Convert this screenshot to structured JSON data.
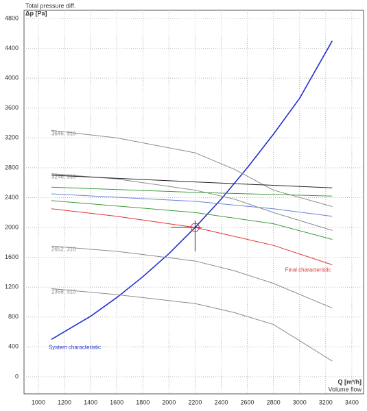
{
  "chart_data": {
    "type": "line",
    "title": "Total pressure diff.",
    "y_label": "Δp [Pa]",
    "x_label": "Q [m³/h]",
    "x_label_2": "Volume flow",
    "xlim": [
      890,
      3490
    ],
    "ylim": [
      -230,
      4910
    ],
    "xticks": [
      1000,
      1200,
      1400,
      1600,
      1800,
      2000,
      2200,
      2400,
      2600,
      2800,
      3000,
      3200,
      3400
    ],
    "yticks": [
      0,
      400,
      800,
      1200,
      1600,
      2000,
      2400,
      2800,
      3200,
      3600,
      4000,
      4400,
      4800
    ],
    "grid": true,
    "operating_point": {
      "x": 2200,
      "y": 2000,
      "color": "#c03030"
    },
    "series": [
      {
        "name": "System characteristic",
        "color": "#1f2fd0",
        "x": [
          1100,
          1400,
          1600,
          1800,
          2000,
          2200,
          2400,
          2600,
          2800,
          3000,
          3250
        ],
        "values": [
          500,
          810,
          1060,
          1340,
          1650,
          2000,
          2380,
          2800,
          3250,
          3730,
          4500
        ]
      },
      {
        "name": "3646, 310",
        "color": "#8a8a8a",
        "x": [
          1100,
          1600,
          2200,
          2500,
          2800,
          3250
        ],
        "values": [
          3300,
          3200,
          3000,
          2780,
          2500,
          2280
        ]
      },
      {
        "name": "3246, 310",
        "color": "#8a8a8a",
        "x": [
          1100,
          1600,
          2200,
          2500,
          2800,
          3250
        ],
        "values": [
          2720,
          2650,
          2500,
          2380,
          2200,
          1960
        ]
      },
      {
        "name": "2652, 310",
        "color": "#8a8a8a",
        "x": [
          1100,
          1600,
          2200,
          2500,
          2800,
          3250
        ],
        "values": [
          1750,
          1680,
          1550,
          1420,
          1250,
          920
        ]
      },
      {
        "name": "2358, 310",
        "color": "#8a8a8a",
        "x": [
          1100,
          1600,
          2200,
          2500,
          2800,
          3250
        ],
        "values": [
          1180,
          1100,
          980,
          860,
          700,
          210
        ]
      },
      {
        "color": "#222222",
        "x": [
          1100,
          2200,
          3250
        ],
        "values": [
          2700,
          2610,
          2530
        ]
      },
      {
        "color": "#3a9a3a",
        "x": [
          1100,
          2200,
          3250
        ],
        "values": [
          2540,
          2470,
          2420
        ]
      },
      {
        "color": "#6a7fdc",
        "x": [
          1100,
          2200,
          2800,
          3250
        ],
        "values": [
          2450,
          2350,
          2250,
          2150
        ]
      },
      {
        "color": "#3a9a3a",
        "x": [
          1100,
          2200,
          2800,
          3250
        ],
        "values": [
          2360,
          2200,
          2050,
          1840
        ]
      },
      {
        "name": "Final characteristic",
        "color": "#e03030",
        "x": [
          1100,
          1600,
          2200,
          2800,
          3250
        ],
        "values": [
          2250,
          2150,
          2000,
          1760,
          1500
        ]
      }
    ]
  }
}
